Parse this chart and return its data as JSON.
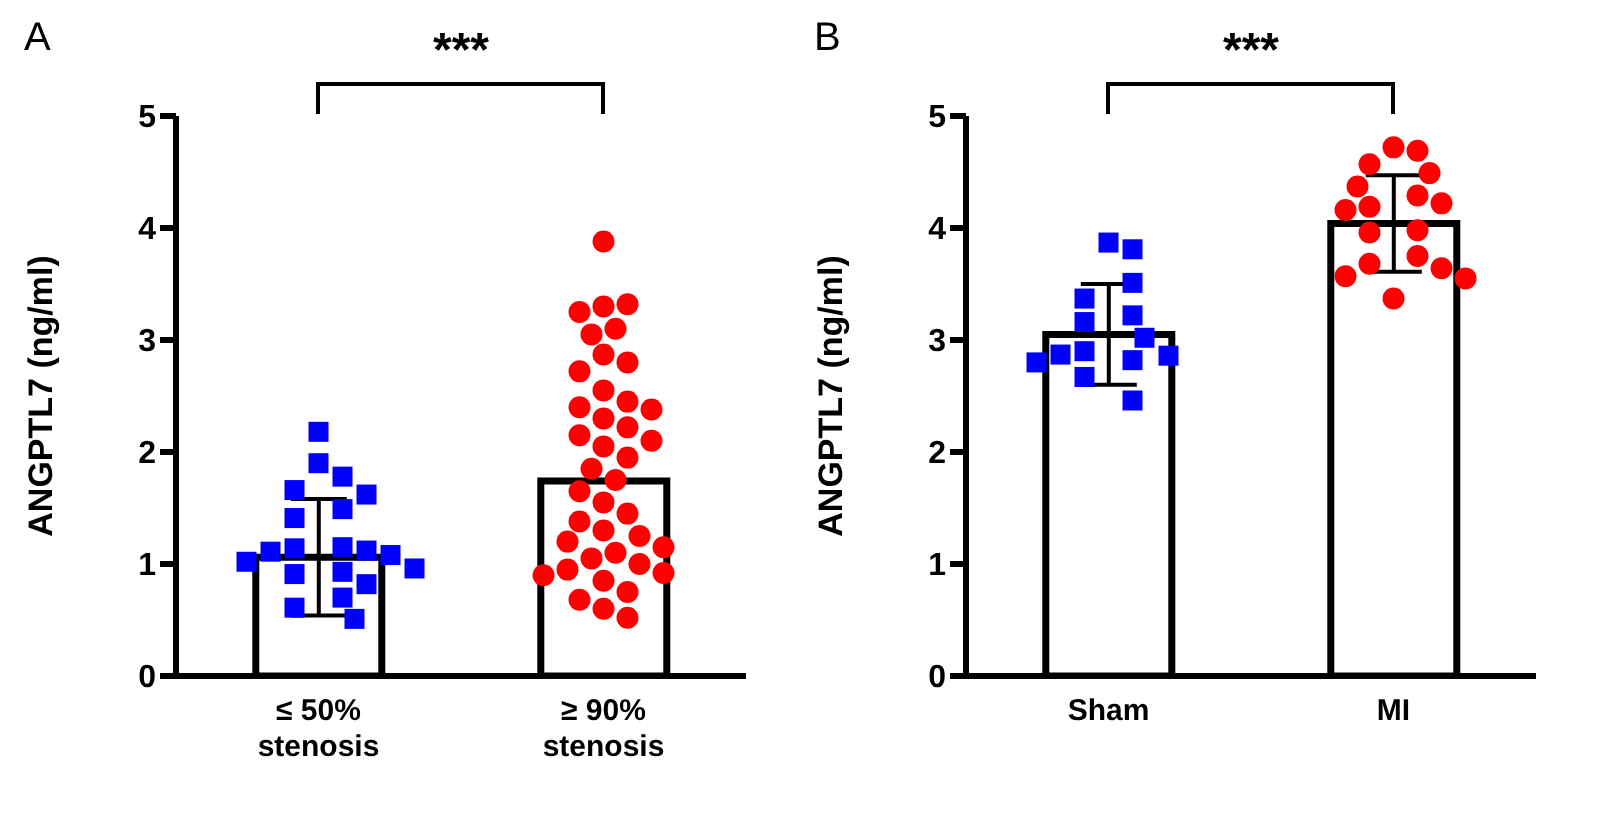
{
  "chart_data": [
    {
      "type": "bar",
      "title": "A",
      "ylabel": "ANGPTL7 (ng/ml)",
      "categories": [
        "≤ 50% stenosis",
        "≥ 90% stenosis"
      ],
      "annotations": [
        "***"
      ],
      "ylim": [
        0,
        5
      ],
      "yticks": [
        0,
        1,
        2,
        3,
        4,
        5
      ],
      "grid": false,
      "legend": false,
      "series": [
        {
          "color": "#ffffff",
          "values": [
            1.06,
            1.74
          ],
          "errors": [
            0.52,
            null
          ]
        },
        {
          "type": "scatter",
          "marker": "square",
          "color": "#0000ff",
          "x": [
            "≤ 50% stenosis",
            "≤ 50% stenosis",
            "≤ 50% stenosis",
            "≤ 50% stenosis",
            "≤ 50% stenosis",
            "≤ 50% stenosis",
            "≤ 50% stenosis",
            "≤ 50% stenosis",
            "≤ 50% stenosis",
            "≤ 50% stenosis",
            "≤ 50% stenosis",
            "≤ 50% stenosis",
            "≤ 50% stenosis",
            "≤ 50% stenosis",
            "≤ 50% stenosis",
            "≤ 50% stenosis",
            "≤ 50% stenosis",
            "≤ 50% stenosis",
            "≤ 50% stenosis",
            "≤ 50% stenosis"
          ],
          "values": [
            2.18,
            1.9,
            1.78,
            1.66,
            1.62,
            1.49,
            1.41,
            1.15,
            1.14,
            1.12,
            1.11,
            1.08,
            1.02,
            0.96,
            0.93,
            0.91,
            0.82,
            0.7,
            0.61,
            0.51
          ]
        },
        {
          "type": "scatter",
          "marker": "circle",
          "color": "#ff0000",
          "x": [
            "≥ 90% stenosis",
            "≥ 90% stenosis",
            "≥ 90% stenosis",
            "≥ 90% stenosis",
            "≥ 90% stenosis",
            "≥ 90% stenosis",
            "≥ 90% stenosis",
            "≥ 90% stenosis",
            "≥ 90% stenosis",
            "≥ 90% stenosis",
            "≥ 90% stenosis",
            "≥ 90% stenosis",
            "≥ 90% stenosis",
            "≥ 90% stenosis",
            "≥ 90% stenosis",
            "≥ 90% stenosis",
            "≥ 90% stenosis",
            "≥ 90% stenosis",
            "≥ 90% stenosis",
            "≥ 90% stenosis",
            "≥ 90% stenosis",
            "≥ 90% stenosis",
            "≥ 90% stenosis",
            "≥ 90% stenosis",
            "≥ 90% stenosis",
            "≥ 90% stenosis",
            "≥ 90% stenosis",
            "≥ 90% stenosis",
            "≥ 90% stenosis",
            "≥ 90% stenosis",
            "≥ 90% stenosis",
            "≥ 90% stenosis",
            "≥ 90% stenosis",
            "≥ 90% stenosis",
            "≥ 90% stenosis",
            "≥ 90% stenosis",
            "≥ 90% stenosis",
            "≥ 90% stenosis",
            "≥ 90% stenosis",
            "≥ 90% stenosis"
          ],
          "values": [
            3.88,
            3.3,
            3.32,
            3.25,
            3.1,
            3.05,
            2.87,
            2.8,
            2.72,
            2.55,
            2.45,
            2.4,
            2.38,
            2.3,
            2.22,
            2.15,
            2.1,
            2.05,
            1.95,
            1.85,
            1.75,
            1.65,
            1.55,
            1.45,
            1.38,
            1.3,
            1.25,
            1.2,
            1.15,
            1.1,
            1.05,
            1.0,
            0.95,
            0.92,
            0.9,
            0.85,
            0.75,
            0.68,
            0.6,
            0.52
          ]
        }
      ]
    },
    {
      "type": "bar",
      "title": "B",
      "ylabel": "ANGPTL7 (ng/ml)",
      "categories": [
        "Sham",
        "MI"
      ],
      "annotations": [
        "***"
      ],
      "ylim": [
        0,
        5
      ],
      "yticks": [
        0,
        1,
        2,
        3,
        4,
        5
      ],
      "grid": false,
      "legend": false,
      "series": [
        {
          "color": "#ffffff",
          "values": [
            3.05,
            4.04
          ],
          "errors": [
            0.45,
            0.43
          ]
        },
        {
          "type": "scatter",
          "marker": "square",
          "color": "#0000ff",
          "x": [
            "Sham",
            "Sham",
            "Sham",
            "Sham",
            "Sham",
            "Sham",
            "Sham",
            "Sham",
            "Sham",
            "Sham",
            "Sham",
            "Sham",
            "Sham",
            "Sham"
          ],
          "values": [
            3.87,
            3.81,
            3.51,
            3.37,
            3.22,
            3.16,
            3.02,
            2.9,
            2.87,
            2.86,
            2.82,
            2.8,
            2.67,
            2.46
          ]
        },
        {
          "type": "scatter",
          "marker": "circle",
          "color": "#ff0000",
          "x": [
            "MI",
            "MI",
            "MI",
            "MI",
            "MI",
            "MI",
            "MI",
            "MI",
            "MI",
            "MI",
            "MI",
            "MI",
            "MI",
            "MI",
            "MI",
            "MI",
            "MI"
          ],
          "values": [
            4.72,
            4.69,
            4.57,
            4.49,
            4.37,
            4.29,
            4.22,
            4.19,
            4.16,
            3.98,
            3.96,
            3.75,
            3.68,
            3.64,
            3.57,
            3.55,
            3.37
          ]
        }
      ]
    }
  ]
}
